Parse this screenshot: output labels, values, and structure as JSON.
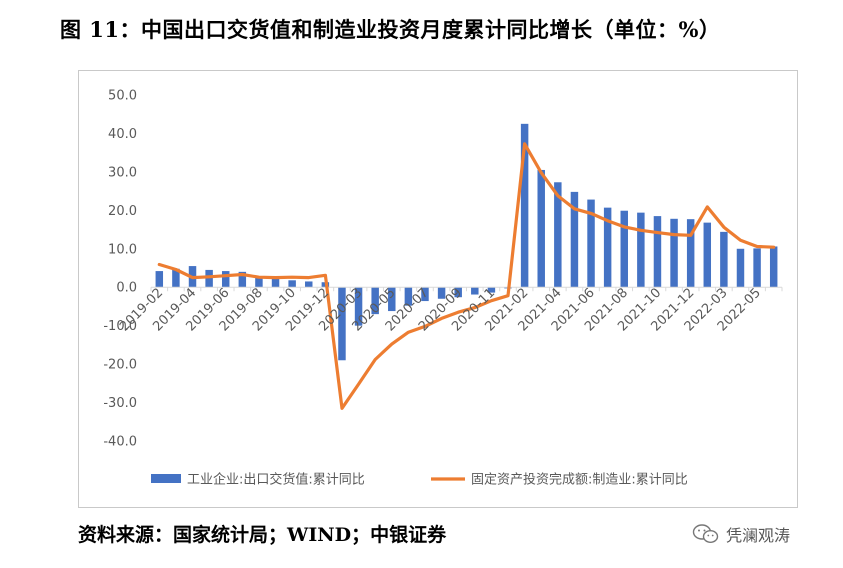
{
  "title": "图 11：中国出口交货值和制造业投资月度累计同比增长（单位：%）",
  "source": "资料来源：国家统计局；WIND；中银证券",
  "watermark": {
    "text": "凭澜观涛",
    "icon": "wechat-icon"
  },
  "chart_data": {
    "type": "bar+line",
    "title": "",
    "xlabel": "",
    "ylabel": "",
    "ylim": [
      -40,
      50
    ],
    "yticks": [
      "50.0",
      "40.0",
      "30.0",
      "20.0",
      "10.0",
      "0.0",
      "-10.0",
      "-20.0",
      "-30.0",
      "-40.0"
    ],
    "ytick_values": [
      50,
      40,
      30,
      20,
      10,
      0,
      -10,
      -20,
      -30,
      -40
    ],
    "grid": false,
    "legend": "bottom",
    "categories": [
      "2019-02",
      "2019-03",
      "2019-04",
      "2019-05",
      "2019-06",
      "2019-07",
      "2019-08",
      "2019-09",
      "2019-10",
      "2019-11",
      "2019-12",
      "2020-02",
      "2020-03",
      "2020-04",
      "2020-05",
      "2020-06",
      "2020-07",
      "2020-08",
      "2020-09",
      "2020-10",
      "2020-11",
      "2020-12",
      "2021-02",
      "2021-03",
      "2021-04",
      "2021-05",
      "2021-06",
      "2021-07",
      "2021-08",
      "2021-09",
      "2021-10",
      "2021-11",
      "2021-12",
      "2022-02",
      "2022-03",
      "2022-04",
      "2022-05",
      "2022-06"
    ],
    "tick_labels": [
      "2019-02",
      "2019-04",
      "2019-06",
      "2019-08",
      "2019-10",
      "2019-12",
      "2020-03",
      "2020-05",
      "2020-07",
      "2020-09",
      "2020-11",
      "2021-02",
      "2021-04",
      "2021-06",
      "2021-08",
      "2021-10",
      "2021-12",
      "2022-03",
      "2022-05"
    ],
    "tick_indices": [
      0,
      2,
      4,
      6,
      8,
      10,
      12,
      14,
      16,
      18,
      20,
      22,
      24,
      26,
      28,
      30,
      32,
      34,
      36
    ],
    "series": [
      {
        "name": "工业企业:出口交货值:累计同比",
        "kind": "bar",
        "color": "#4472C4",
        "values": [
          4.2,
          4.8,
          5.5,
          4.5,
          4.2,
          4.0,
          2.6,
          2.5,
          1.8,
          1.5,
          1.3,
          -19.0,
          -10.0,
          -7.0,
          -6.2,
          -4.8,
          -3.6,
          -3.0,
          -2.6,
          -1.9,
          -1.4,
          -0.3,
          42.5,
          30.5,
          27.3,
          24.8,
          22.8,
          20.7,
          19.9,
          19.4,
          18.5,
          17.8,
          17.7,
          16.8,
          14.4,
          10.0,
          10.1,
          10.6
        ]
      },
      {
        "name": "固定资产投资完成额:制造业:累计同比",
        "kind": "line",
        "color": "#ED7D31",
        "values": [
          5.9,
          4.6,
          2.5,
          2.7,
          3.0,
          3.3,
          2.6,
          2.5,
          2.6,
          2.5,
          3.1,
          -31.5,
          -25.2,
          -18.8,
          -14.8,
          -11.7,
          -10.2,
          -8.1,
          -6.5,
          -5.3,
          -3.5,
          -2.2,
          37.3,
          29.8,
          23.8,
          20.4,
          19.2,
          17.3,
          15.7,
          14.8,
          14.2,
          13.7,
          13.5,
          20.9,
          15.6,
          12.2,
          10.6,
          10.4
        ]
      }
    ]
  }
}
